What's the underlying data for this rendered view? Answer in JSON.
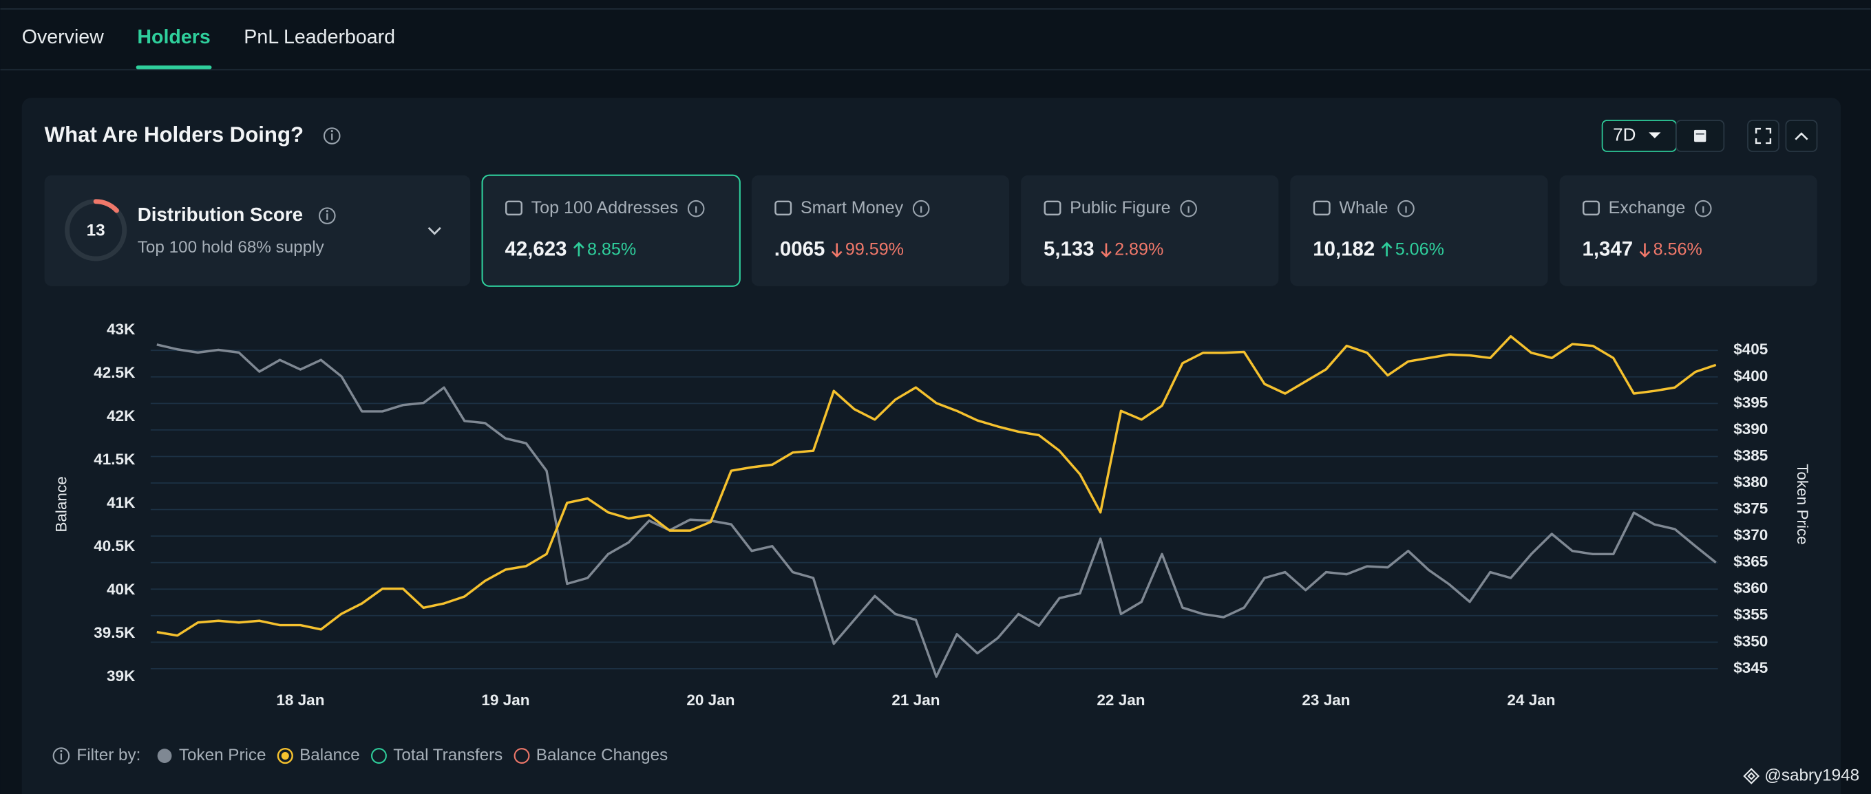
{
  "tabs": [
    {
      "label": "Overview"
    },
    {
      "label": "Holders",
      "active": true
    },
    {
      "label": "PnL Leaderboard"
    }
  ],
  "panel": {
    "title": "What Are Holders Doing?",
    "period": "7D"
  },
  "distribution": {
    "label": "Distribution Score",
    "score": 13,
    "subtitle": "Top 100 hold 68% supply"
  },
  "cards": [
    {
      "label": "Top 100 Addresses",
      "value": "42,623",
      "change": "8.85%",
      "direction": "up",
      "selected": true
    },
    {
      "label": "Smart Money",
      "value": ".0065",
      "change": "99.59%",
      "direction": "down"
    },
    {
      "label": "Public Figure",
      "value": "5,133",
      "change": "2.89%",
      "direction": "down"
    },
    {
      "label": "Whale",
      "value": "10,182",
      "change": "5.06%",
      "direction": "up"
    },
    {
      "label": "Exchange",
      "value": "1,347",
      "change": "8.56%",
      "direction": "down"
    }
  ],
  "chart_data": {
    "type": "line",
    "y_label": "Balance",
    "y2_label": "Token Price",
    "grid": true,
    "x": [
      17.3,
      17.4,
      17.5,
      17.6,
      17.7,
      17.8,
      17.9,
      18.0,
      18.1,
      18.2,
      18.3,
      18.4,
      18.5,
      18.6,
      18.7,
      18.8,
      18.9,
      19.0,
      19.1,
      19.2,
      19.3,
      19.4,
      19.5,
      19.6,
      19.7,
      19.8,
      19.9,
      20.0,
      20.1,
      20.2,
      20.3,
      20.4,
      20.5,
      20.6,
      20.7,
      20.8,
      20.9,
      21.0,
      21.1,
      21.2,
      21.3,
      21.4,
      21.5,
      21.6,
      21.7,
      21.8,
      21.9,
      22.0,
      22.1,
      22.2,
      22.3,
      22.4,
      22.5,
      22.6,
      22.7,
      22.8,
      22.9,
      23.0,
      23.1,
      23.2,
      23.3,
      23.4,
      23.5,
      23.6,
      23.7,
      23.8,
      23.9,
      24.0,
      24.1,
      24.2,
      24.3,
      24.4,
      24.5,
      24.6,
      24.7,
      24.8,
      24.9
    ],
    "xlim": [
      17.27,
      24.91
    ],
    "xticks": [
      {
        "value": 18,
        "label": "18 Jan"
      },
      {
        "value": 19,
        "label": "19 Jan"
      },
      {
        "value": 20,
        "label": "20 Jan"
      },
      {
        "value": 21,
        "label": "21 Jan"
      },
      {
        "value": 22,
        "label": "22 Jan"
      },
      {
        "value": 23,
        "label": "23 Jan"
      },
      {
        "value": 24,
        "label": "24 Jan"
      }
    ],
    "ylim": [
      39000,
      43000
    ],
    "yticks": [
      {
        "value": 39000,
        "label": "39K"
      },
      {
        "value": 39500,
        "label": "39.5K"
      },
      {
        "value": 40000,
        "label": "40K"
      },
      {
        "value": 40500,
        "label": "40.5K"
      },
      {
        "value": 41000,
        "label": "41K"
      },
      {
        "value": 41500,
        "label": "41.5K"
      },
      {
        "value": 42000,
        "label": "42K"
      },
      {
        "value": 42500,
        "label": "42.5K"
      },
      {
        "value": 43000,
        "label": "43K"
      }
    ],
    "y2lim": [
      343.4,
      408.8
    ],
    "y2ticks": [
      {
        "value": 345,
        "label": "$345"
      },
      {
        "value": 350,
        "label": "$350"
      },
      {
        "value": 355,
        "label": "$355"
      },
      {
        "value": 360,
        "label": "$360"
      },
      {
        "value": 365,
        "label": "$365"
      },
      {
        "value": 370,
        "label": "$370"
      },
      {
        "value": 375,
        "label": "$375"
      },
      {
        "value": 380,
        "label": "$380"
      },
      {
        "value": 385,
        "label": "$385"
      },
      {
        "value": 390,
        "label": "$390"
      },
      {
        "value": 395,
        "label": "$395"
      },
      {
        "value": 400,
        "label": "$400"
      },
      {
        "value": 405,
        "label": "$405"
      }
    ],
    "series": [
      {
        "name": "Token Price",
        "color": "#7f8893",
        "axis": "y2",
        "marker": "dot",
        "values": [
          406.1,
          405.2,
          404.6,
          405.1,
          404.6,
          401.0,
          403.2,
          401.4,
          403.2,
          400.1,
          393.5,
          393.5,
          394.7,
          395.1,
          398.0,
          391.7,
          391.3,
          388.4,
          387.5,
          382.3,
          361.0,
          362.1,
          366.6,
          368.8,
          372.9,
          371.1,
          373.1,
          372.9,
          372.2,
          367.2,
          368.1,
          363.2,
          362.1,
          349.7,
          354.2,
          358.7,
          355.3,
          354.2,
          343.5,
          351.5,
          347.9,
          350.8,
          355.3,
          353.1,
          358.3,
          359.2,
          369.5,
          355.3,
          357.6,
          366.6,
          356.5,
          355.3,
          354.7,
          356.5,
          362.1,
          363.2,
          359.8,
          363.2,
          362.8,
          364.3,
          364.1,
          367.2,
          363.6,
          360.9,
          357.6,
          363.2,
          362.1,
          366.6,
          370.4,
          367.2,
          366.6,
          366.6,
          374.4,
          372.2,
          371.3,
          368.1,
          365.0
        ]
      },
      {
        "name": "Balance",
        "color": "#f5c12e",
        "marker": "ring",
        "values": [
          39520,
          39480,
          39630,
          39650,
          39630,
          39650,
          39600,
          39600,
          39550,
          39730,
          39850,
          40020,
          40020,
          39800,
          39850,
          39930,
          40110,
          40240,
          40280,
          40420,
          41010,
          41060,
          40900,
          40830,
          40870,
          40690,
          40690,
          40790,
          41380,
          41420,
          41450,
          41590,
          41610,
          42300,
          42090,
          41970,
          42200,
          42340,
          42160,
          42070,
          41960,
          41890,
          41830,
          41790,
          41610,
          41340,
          40900,
          42070,
          41970,
          42130,
          42620,
          42740,
          42740,
          42750,
          42380,
          42270,
          42410,
          42550,
          42820,
          42740,
          42480,
          42640,
          42680,
          42720,
          42710,
          42680,
          42930,
          42740,
          42680,
          42840,
          42820,
          42680,
          42270,
          42300,
          42340,
          42520,
          42600
        ]
      }
    ]
  },
  "filters": {
    "label": "Filter by:",
    "inactive": [
      {
        "name": "Total Transfers",
        "color": "#2fcf9c"
      },
      {
        "name": "Balance Changes",
        "color": "#f0786a"
      }
    ]
  },
  "watermark": "@sabry1948"
}
